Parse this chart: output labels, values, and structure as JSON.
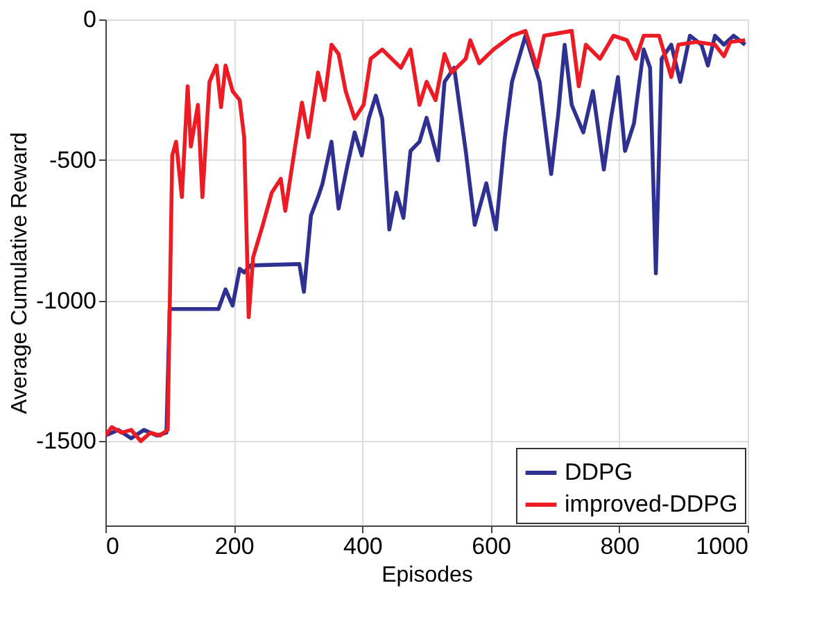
{
  "chart_data": {
    "type": "line",
    "xlabel": "Episodes",
    "ylabel": "Average Cumulative Reward",
    "xlim": [
      0,
      1000
    ],
    "xticks": [
      0,
      200,
      400,
      600,
      800,
      1000
    ],
    "ylim": [
      -1800,
      0
    ],
    "yticks": [
      -1500,
      -1000,
      -500,
      0
    ],
    "grid": true,
    "legend": "bottom right",
    "line_style": "solid",
    "marker": "none",
    "series": [
      {
        "name": "DDPG",
        "color": "#2e3192",
        "x": [
          0,
          20,
          40,
          60,
          80,
          95,
          100,
          176,
          187,
          198,
          209,
          216,
          226,
          302,
          309,
          320,
          331,
          338,
          352,
          363,
          377,
          388,
          399,
          410,
          421,
          431,
          442,
          453,
          464,
          475,
          489,
          500,
          518,
          528,
          543,
          561,
          575,
          593,
          608,
          622,
          633,
          654,
          676,
          694,
          705,
          715,
          726,
          744,
          759,
          776,
          787,
          798,
          809,
          823,
          838,
          848,
          857,
          866,
          881,
          895,
          910,
          928,
          938,
          949,
          963,
          978,
          996
        ],
        "values": [
          -1480,
          -1460,
          -1490,
          -1460,
          -1480,
          -1470,
          -1030,
          -1030,
          -960,
          -1018,
          -887,
          -900,
          -875,
          -870,
          -969,
          -698,
          -632,
          -584,
          -435,
          -673,
          -517,
          -402,
          -484,
          -353,
          -271,
          -353,
          -747,
          -616,
          -706,
          -468,
          -435,
          -350,
          -501,
          -222,
          -172,
          -468,
          -731,
          -583,
          -747,
          -419,
          -222,
          -58,
          -222,
          -550,
          -337,
          -90,
          -304,
          -402,
          -255,
          -534,
          -353,
          -205,
          -468,
          -369,
          -107,
          -172,
          -903,
          -140,
          -90,
          -222,
          -58,
          -90,
          -164,
          -58,
          -90,
          -58,
          -90
        ]
      },
      {
        "name": "improved-DDPG",
        "color": "#ed1c24",
        "x": [
          0,
          10,
          25,
          40,
          55,
          70,
          85,
          97,
          104,
          110,
          119,
          128,
          133,
          144,
          151,
          162,
          173,
          180,
          187,
          198,
          209,
          216,
          223,
          230,
          245,
          259,
          273,
          280,
          291,
          306,
          316,
          331,
          341,
          352,
          363,
          374,
          388,
          402,
          413,
          431,
          460,
          475,
          489,
          500,
          514,
          528,
          539,
          561,
          568,
          582,
          604,
          633,
          654,
          672,
          683,
          726,
          737,
          748,
          770,
          791,
          812,
          826,
          838,
          862,
          881,
          892,
          920,
          949,
          963,
          973,
          996
        ],
        "values": [
          -1480,
          -1450,
          -1470,
          -1460,
          -1500,
          -1470,
          -1480,
          -1460,
          -484,
          -435,
          -632,
          -238,
          -452,
          -304,
          -632,
          -222,
          -164,
          -312,
          -164,
          -255,
          -287,
          -419,
          -1059,
          -846,
          -731,
          -616,
          -567,
          -681,
          -517,
          -296,
          -419,
          -189,
          -287,
          -90,
          -123,
          -255,
          -353,
          -304,
          -140,
          -107,
          -172,
          -107,
          -304,
          -222,
          -287,
          -123,
          -189,
          -140,
          -74,
          -156,
          -107,
          -58,
          -41,
          -172,
          -58,
          -41,
          -238,
          -90,
          -140,
          -58,
          -74,
          -140,
          -58,
          -58,
          -205,
          -90,
          -80,
          -90,
          -131,
          -80,
          -74
        ]
      }
    ]
  }
}
